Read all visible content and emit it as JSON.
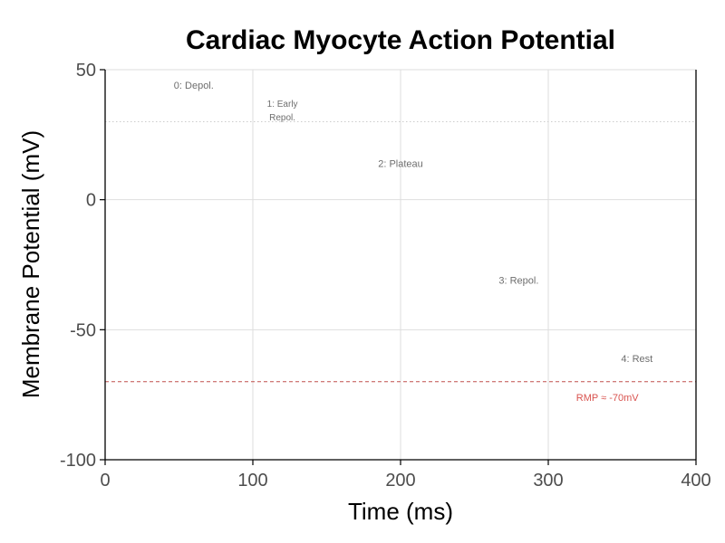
{
  "chart_data": {
    "type": "line",
    "title": "Cardiac Myocyte Action Potential",
    "xlabel": "Time (ms)",
    "ylabel": "Membrane Potential (mV)",
    "xlim": [
      0,
      400
    ],
    "ylim": [
      -100,
      50
    ],
    "x_ticks": [
      0,
      100,
      200,
      300,
      400
    ],
    "y_ticks": [
      -100,
      -50,
      0,
      50
    ],
    "grid": true,
    "series": [],
    "reference_lines": [
      {
        "orientation": "horizontal",
        "y": 30,
        "style": "dotted",
        "color": "#cccccc"
      },
      {
        "orientation": "horizontal",
        "y": -70,
        "style": "dashed",
        "color": "#c0504d"
      }
    ],
    "annotations": [
      {
        "text": "0: Depol.",
        "x": 60,
        "y": 44
      },
      {
        "text": "1: Early\nRepol.",
        "x": 120,
        "y": 35
      },
      {
        "text": "2: Plateau",
        "x": 200,
        "y": 14
      },
      {
        "text": "3: Repol.",
        "x": 280,
        "y": -31
      },
      {
        "text": "4: Rest",
        "x": 360,
        "y": -61
      },
      {
        "text": "RMP ≈ -70mV",
        "x": 340,
        "y": -76
      }
    ]
  }
}
